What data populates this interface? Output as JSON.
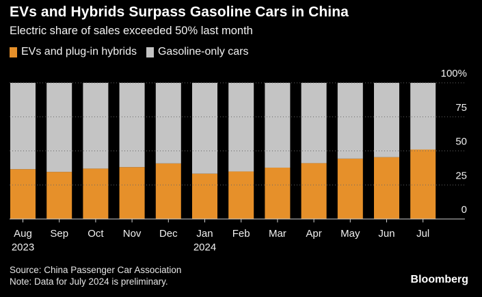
{
  "title": "EVs and Hybrids Surpass Gasoline Cars in China",
  "subtitle": "Electric share of sales exceeded 50% last month",
  "legend": [
    {
      "label": "EVs and plug-in hybrids",
      "color": "#e6902a"
    },
    {
      "label": "Gasoline-only cars",
      "color": "#c4c4c4"
    }
  ],
  "footer": {
    "source": "Source: China Passenger Car Association",
    "note": "Note: Data for July 2024 is preliminary."
  },
  "brand": "Bloomberg",
  "chart_data": {
    "type": "bar",
    "stacked": true,
    "categories": [
      "Aug",
      "Sep",
      "Oct",
      "Nov",
      "Dec",
      "Jan",
      "Feb",
      "Mar",
      "Apr",
      "May",
      "Jun",
      "Jul"
    ],
    "category_sublabels": [
      "2023",
      "",
      "",
      "",
      "",
      "2024",
      "",
      "",
      "",
      "",
      "",
      ""
    ],
    "series": [
      {
        "name": "EVs and plug-in hybrids",
        "values": [
          36.6,
          34.6,
          37.0,
          38.1,
          40.8,
          33.3,
          34.9,
          37.7,
          41.0,
          44.3,
          45.4,
          51.0
        ],
        "color": "#e6902a"
      },
      {
        "name": "Gasoline-only cars",
        "values": [
          63.4,
          65.4,
          63.0,
          61.9,
          59.2,
          66.7,
          65.1,
          62.3,
          59.0,
          55.7,
          54.6,
          49.0
        ],
        "color": "#c4c4c4"
      }
    ],
    "y_ticks": [
      "0",
      "25",
      "50",
      "75",
      "100%"
    ],
    "ylim": [
      0,
      100
    ],
    "grid": true,
    "legend_position": "top-left"
  }
}
